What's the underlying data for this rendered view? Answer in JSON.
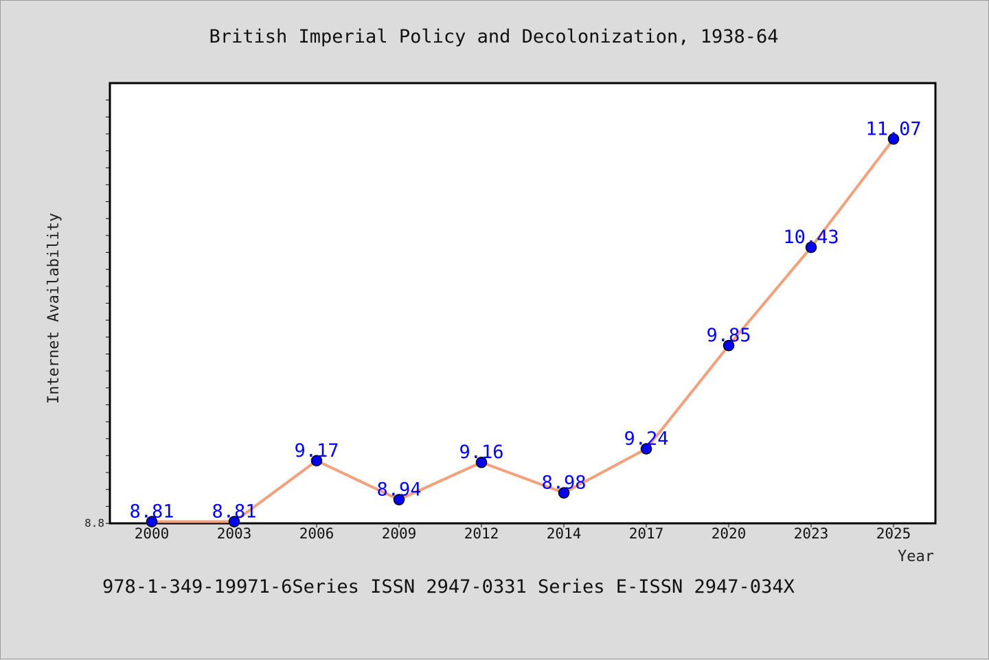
{
  "chart_data": {
    "type": "line",
    "title": "British Imperial Policy and Decolonization, 1938-64",
    "xlabel": "Year",
    "ylabel": "Internet Availability",
    "x": [
      "2000",
      "2003",
      "2006",
      "2009",
      "2012",
      "2014",
      "2017",
      "2020",
      "2023",
      "2025"
    ],
    "series": [
      {
        "values": [
          8.81,
          8.81,
          9.17,
          8.94,
          9.16,
          8.98,
          9.24,
          9.85,
          10.43,
          11.07
        ],
        "labels": [
          "8.81",
          "8.81",
          "9.17",
          "8.94",
          "9.16",
          "8.98",
          "9.24",
          "9.85",
          "10.43",
          "11.07"
        ],
        "line_color": "#f4a07a",
        "marker_color": "#0000ff"
      }
    ],
    "ylim": [
      8.8,
      11.4
    ],
    "yticks_labeled": [
      "8.8"
    ],
    "grid": false,
    "legend": "none"
  },
  "footer_text": "978-1-349-19971-6Series ISSN 2947-0331 Series E-ISSN 2947-034X",
  "colors": {
    "background": "#dcdcdc",
    "plot_background": "#ffffff",
    "line": "#f4a07a",
    "marker": "#0000ff",
    "data_label": "#0000ff"
  }
}
